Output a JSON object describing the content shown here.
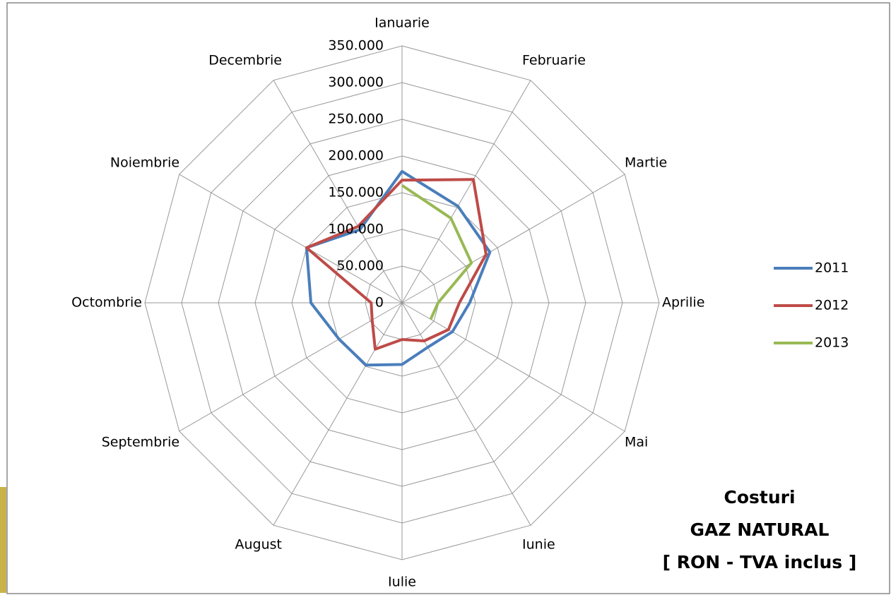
{
  "chart_data": {
    "type": "radar",
    "title": [
      "Costuri",
      "GAZ NATURAL",
      "[ RON - TVA inclus ]"
    ],
    "categories": [
      "Ianuarie",
      "Februarie",
      "Martie",
      "Aprilie",
      "Mai",
      "Iunie",
      "Iulie",
      "August",
      "Septembrie",
      "Octombrie",
      "Noiembrie",
      "Decembrie"
    ],
    "series": [
      {
        "name": "2011",
        "color": "#4a7ebb",
        "values": [
          179000,
          152000,
          138000,
          92000,
          79000,
          70000,
          84000,
          98000,
          99000,
          124000,
          150000,
          115000
        ]
      },
      {
        "name": "2012",
        "color": "#be4b48",
        "values": [
          167000,
          194000,
          132000,
          78000,
          73000,
          60000,
          50000,
          73000,
          47000,
          42000,
          150000,
          120000
        ]
      },
      {
        "name": "2013",
        "color": "#98b954",
        "values": [
          160000,
          133000,
          109000,
          49000,
          45000,
          null,
          null,
          null,
          null,
          null,
          null,
          null
        ]
      }
    ],
    "ylim": [
      0,
      350000
    ],
    "yticks": [
      0,
      {
        "value": 50000,
        "label": "50.000"
      },
      {
        "value": 100000,
        "label": "100.000"
      },
      {
        "value": 150000,
        "label": "150.000"
      },
      {
        "value": 200000,
        "label": "200.000"
      },
      {
        "value": 250000,
        "label": "250.000"
      },
      {
        "value": 300000,
        "label": "300.000"
      },
      {
        "value": 350000,
        "label": "350.000"
      }
    ],
    "grid": true,
    "legend": "right"
  }
}
